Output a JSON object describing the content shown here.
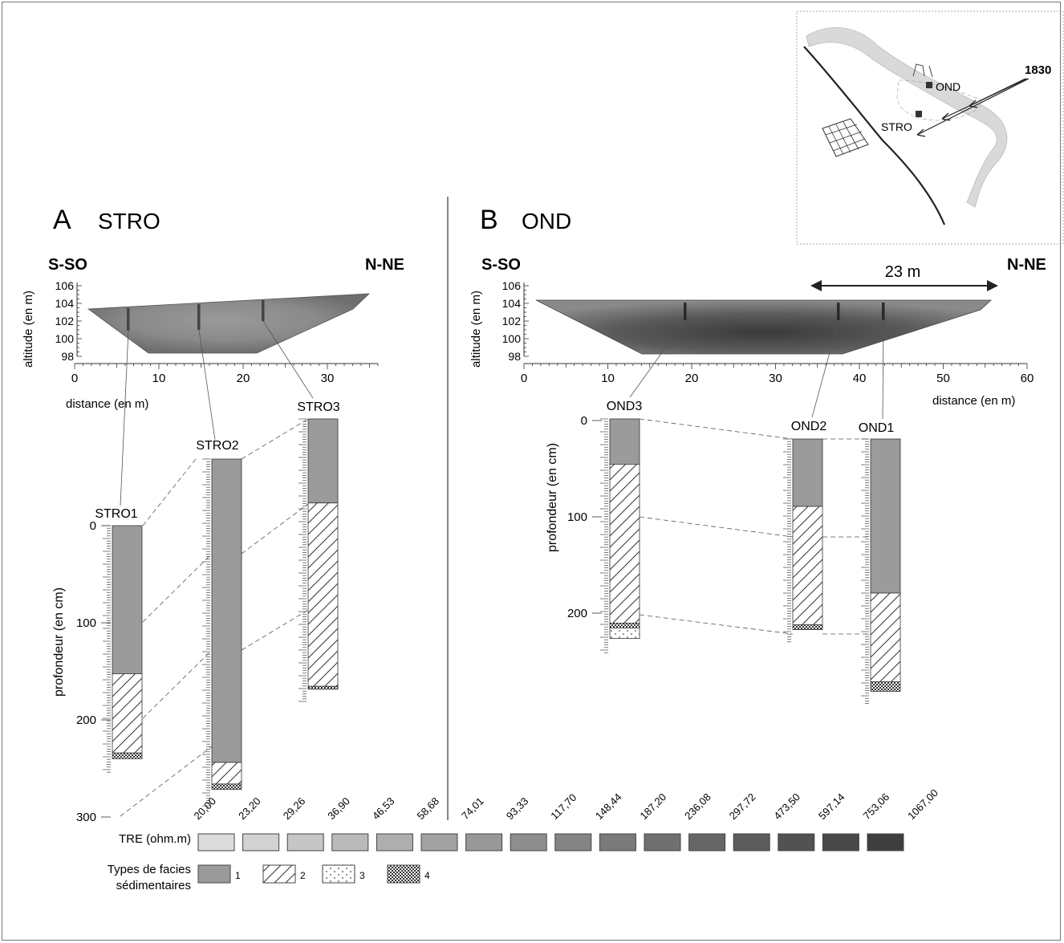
{
  "panel_a": {
    "letter": "A",
    "name": "STRO",
    "dir_left": "S-SO",
    "dir_right": "N-NE",
    "altitude_label": "altitude (en m)",
    "distance_label": "distance (en m)",
    "depth_label": "profondeur (en cm)",
    "alt_ticks": [
      "106",
      "104",
      "102",
      "100",
      "98"
    ],
    "dist_ticks": [
      "0",
      "10",
      "20",
      "30"
    ],
    "depth_ticks": [
      "0",
      "100",
      "200",
      "300"
    ],
    "cores": [
      {
        "name": "STRO1",
        "units": [
          {
            "facies": 1,
            "from": 0,
            "to": 155
          },
          {
            "facies": 2,
            "from": 155,
            "to": 238
          },
          {
            "facies": 4,
            "from": 238,
            "to": 244
          }
        ]
      },
      {
        "name": "STRO2",
        "units": [
          {
            "facies": 1,
            "from": 0,
            "to": 225
          },
          {
            "facies": 2,
            "from": 225,
            "to": 241
          },
          {
            "facies": 4,
            "from": 241,
            "to": 245
          }
        ]
      },
      {
        "name": "STRO3",
        "units": [
          {
            "facies": 1,
            "from": 0,
            "to": 88
          },
          {
            "facies": 2,
            "from": 88,
            "to": 280
          },
          {
            "facies": 4,
            "from": 280,
            "to": 283
          }
        ]
      }
    ]
  },
  "panel_b": {
    "letter": "B",
    "name": "OND",
    "dir_left": "S-SO",
    "dir_right": "N-NE",
    "altitude_label": "altitude (en m)",
    "distance_label": "distance (en m)",
    "depth_label": "profondeur (en cm)",
    "alt_ticks": [
      "106",
      "104",
      "102",
      "100",
      "98"
    ],
    "dist_ticks": [
      "0",
      "10",
      "20",
      "30",
      "40",
      "50",
      "60"
    ],
    "depth_ticks": [
      "0",
      "100",
      "200"
    ],
    "span_label": "23 m",
    "cores": [
      {
        "name": "OND3",
        "units": [
          {
            "facies": 1,
            "from": 0,
            "to": 47
          },
          {
            "facies": 2,
            "from": 47,
            "to": 212
          },
          {
            "facies": 4,
            "from": 212,
            "to": 217
          },
          {
            "facies": 3,
            "from": 217,
            "to": 228
          }
        ]
      },
      {
        "name": "OND2",
        "units": [
          {
            "facies": 1,
            "from": 0,
            "to": 70
          },
          {
            "facies": 2,
            "from": 70,
            "to": 193
          },
          {
            "facies": 4,
            "from": 193,
            "to": 198
          }
        ]
      },
      {
        "name": "OND1",
        "units": [
          {
            "facies": 1,
            "from": 0,
            "to": 160
          },
          {
            "facies": 2,
            "from": 160,
            "to": 252
          },
          {
            "facies": 4,
            "from": 252,
            "to": 262
          }
        ]
      }
    ]
  },
  "map": {
    "year": "1830",
    "label_ond": "OND",
    "label_stro": "STRO"
  },
  "legend": {
    "tre_label": "TRE (ohm.m)",
    "tre_values": [
      "20,00",
      "23,20",
      "29,26",
      "36,90",
      "46,53",
      "58,68",
      "74,01",
      "93,33",
      "117,70",
      "148,44",
      "187,20",
      "236,08",
      "297,72",
      "473,50",
      "597,14",
      "753,06",
      "1067,00"
    ],
    "tre_colors": [
      "#dcdcdc",
      "#d2d2d2",
      "#c6c6c6",
      "#bababa",
      "#aeaeae",
      "#a2a2a2",
      "#989898",
      "#8e8e8e",
      "#848484",
      "#7a7a7a",
      "#707070",
      "#666666",
      "#5c5c5c",
      "#525252",
      "#484848",
      "#3e3e3e"
    ],
    "facies_label_1": "Types de facies",
    "facies_label_2": "sédimentaires",
    "facies": [
      "1",
      "2",
      "3",
      "4"
    ]
  }
}
